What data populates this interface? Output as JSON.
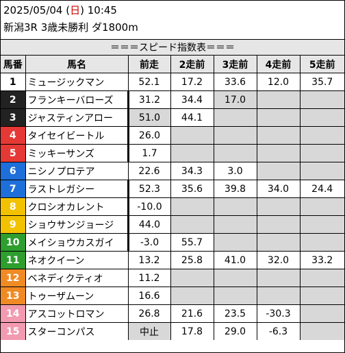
{
  "header": {
    "date": "2025/05/04",
    "weekday_open": " (",
    "weekday": "日",
    "weekday_close": ") ",
    "time": "10:45",
    "race_info": "新潟3R 3歳未勝利 ダ1800m"
  },
  "table": {
    "title": "＝＝＝スピード指数表＝＝＝",
    "columns": [
      "馬番",
      "馬名",
      "前走",
      "2走前",
      "3走前",
      "4走前",
      "5走前"
    ],
    "colors": {
      "1": "#ffffff",
      "2": "#222222",
      "3": "#222222",
      "4": "#e53935",
      "5": "#e53935",
      "6": "#1e6fd9",
      "7": "#1e6fd9",
      "8": "#f2c200",
      "9": "#f2c200",
      "10": "#2e9e2e",
      "11": "#2e9e2e",
      "12": "#f08a24",
      "13": "#f08a24",
      "14": "#f29ab0",
      "15": "#f29ab0"
    },
    "rows": [
      {
        "no": "1",
        "name": "ミュージックマン",
        "v": [
          "52.1",
          "17.2",
          "33.6",
          "12.0",
          "35.7"
        ]
      },
      {
        "no": "2",
        "name": "フランキーバローズ",
        "v": [
          "31.2",
          "34.4",
          "17.0",
          "",
          ""
        ]
      },
      {
        "no": "3",
        "name": "ジャスティンアロー",
        "v": [
          "51.0",
          "44.1",
          "",
          "",
          ""
        ]
      },
      {
        "no": "4",
        "name": "タイセイビートル",
        "v": [
          "26.0",
          "",
          "",
          "",
          ""
        ]
      },
      {
        "no": "5",
        "name": "ミッキーサンズ",
        "v": [
          "1.7",
          "",
          "",
          "",
          ""
        ]
      },
      {
        "no": "6",
        "name": "ニシノプロテア",
        "v": [
          "22.6",
          "34.3",
          "3.0",
          "",
          ""
        ]
      },
      {
        "no": "7",
        "name": "ラストレガシー",
        "v": [
          "52.3",
          "35.6",
          "39.8",
          "34.0",
          "24.4"
        ]
      },
      {
        "no": "8",
        "name": "クロシオカレント",
        "v": [
          "-10.0",
          "",
          "",
          "",
          ""
        ]
      },
      {
        "no": "9",
        "name": "ショウサンジョージ",
        "v": [
          "44.0",
          "",
          "",
          "",
          ""
        ]
      },
      {
        "no": "10",
        "name": "メイショウカスガイ",
        "v": [
          "-3.0",
          "55.7",
          "",
          "",
          ""
        ]
      },
      {
        "no": "11",
        "name": "ネオクイーン",
        "v": [
          "13.2",
          "25.8",
          "41.0",
          "32.0",
          "33.2"
        ]
      },
      {
        "no": "12",
        "name": "ベネディクティオ",
        "v": [
          "11.2",
          "",
          "",
          "",
          ""
        ]
      },
      {
        "no": "13",
        "name": "トゥーザムーン",
        "v": [
          "16.6",
          "",
          "",
          "",
          ""
        ]
      },
      {
        "no": "14",
        "name": "アスコットロマン",
        "v": [
          "26.8",
          "21.6",
          "23.5",
          "-30.3",
          ""
        ]
      },
      {
        "no": "15",
        "name": "スターコンパス",
        "v": [
          "中止",
          "17.8",
          "29.0",
          "-6.3",
          ""
        ]
      }
    ]
  }
}
